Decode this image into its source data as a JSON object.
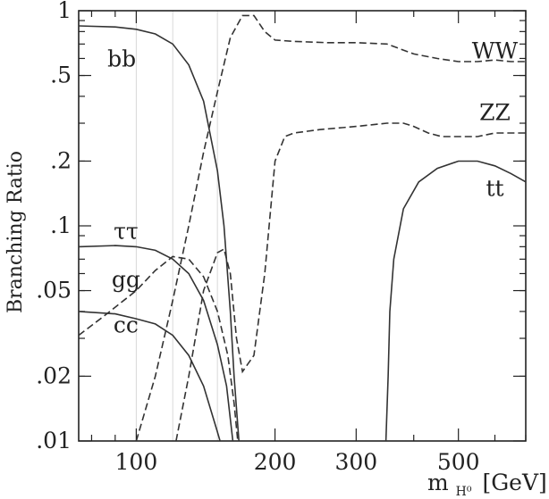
{
  "chart_data": {
    "type": "line",
    "title": "",
    "xlabel_main": "m",
    "xlabel_sub": "H⁰",
    "xlabel_unit": "[GeV]",
    "ylabel": "Branching Ratio",
    "x_scale": "log",
    "y_scale": "log",
    "xlim": [
      75,
      700
    ],
    "ylim": [
      0.01,
      1
    ],
    "xticks": [
      {
        "value": 100,
        "label": "100"
      },
      {
        "value": 200,
        "label": "200"
      },
      {
        "value": 300,
        "label": "300"
      },
      {
        "value": 500,
        "label": "500"
      }
    ],
    "yticks": [
      {
        "value": 1,
        "label": "1"
      },
      {
        "value": 0.5,
        "label": ".5"
      },
      {
        "value": 0.2,
        "label": ".2"
      },
      {
        "value": 0.1,
        "label": ".1"
      },
      {
        "value": 0.05,
        "label": ".05"
      },
      {
        "value": 0.02,
        "label": ".02"
      },
      {
        "value": 0.01,
        "label": ".01"
      }
    ],
    "grid": false,
    "series": [
      {
        "name": "bb",
        "style": "solid",
        "label_at": [
          93,
          0.55
        ],
        "points": [
          [
            75,
            0.85
          ],
          [
            90,
            0.84
          ],
          [
            100,
            0.82
          ],
          [
            110,
            0.78
          ],
          [
            120,
            0.7
          ],
          [
            130,
            0.56
          ],
          [
            140,
            0.38
          ],
          [
            150,
            0.18
          ],
          [
            155,
            0.1
          ],
          [
            160,
            0.04
          ],
          [
            163,
            0.02
          ],
          [
            167,
            0.01
          ]
        ]
      },
      {
        "name": "ττ",
        "style": "solid",
        "label_at": [
          95,
          0.087
        ],
        "points": [
          [
            75,
            0.08
          ],
          [
            90,
            0.081
          ],
          [
            100,
            0.08
          ],
          [
            110,
            0.077
          ],
          [
            120,
            0.07
          ],
          [
            130,
            0.06
          ],
          [
            140,
            0.045
          ],
          [
            150,
            0.028
          ],
          [
            157,
            0.018
          ],
          [
            162,
            0.01
          ]
        ]
      },
      {
        "name": "cc",
        "style": "solid",
        "label_at": [
          95,
          0.032
        ],
        "points": [
          [
            75,
            0.04
          ],
          [
            90,
            0.039
          ],
          [
            100,
            0.037
          ],
          [
            110,
            0.035
          ],
          [
            120,
            0.031
          ],
          [
            130,
            0.025
          ],
          [
            140,
            0.018
          ],
          [
            150,
            0.011
          ],
          [
            152,
            0.01
          ]
        ]
      },
      {
        "name": "gg",
        "style": "dashed",
        "label_at": [
          95,
          0.052
        ],
        "points": [
          [
            75,
            0.031
          ],
          [
            85,
            0.038
          ],
          [
            100,
            0.05
          ],
          [
            110,
            0.062
          ],
          [
            120,
            0.072
          ],
          [
            130,
            0.07
          ],
          [
            140,
            0.058
          ],
          [
            150,
            0.04
          ],
          [
            158,
            0.025
          ],
          [
            163,
            0.015
          ],
          [
            166,
            0.01
          ]
        ]
      },
      {
        "name": "WW",
        "style": "dashed",
        "label_at": [
          600,
          0.6
        ],
        "points": [
          [
            100,
            0.01
          ],
          [
            110,
            0.02
          ],
          [
            120,
            0.045
          ],
          [
            130,
            0.1
          ],
          [
            140,
            0.22
          ],
          [
            150,
            0.42
          ],
          [
            160,
            0.75
          ],
          [
            170,
            0.95
          ],
          [
            180,
            0.95
          ],
          [
            190,
            0.8
          ],
          [
            200,
            0.73
          ],
          [
            220,
            0.72
          ],
          [
            260,
            0.71
          ],
          [
            300,
            0.71
          ],
          [
            350,
            0.7
          ],
          [
            400,
            0.63
          ],
          [
            450,
            0.6
          ],
          [
            500,
            0.58
          ],
          [
            550,
            0.58
          ],
          [
            600,
            0.59
          ],
          [
            650,
            0.58
          ],
          [
            700,
            0.58
          ]
        ]
      },
      {
        "name": "ZZ",
        "style": "dashed",
        "label_at": [
          600,
          0.31
        ],
        "points": [
          [
            122,
            0.01
          ],
          [
            130,
            0.02
          ],
          [
            140,
            0.05
          ],
          [
            150,
            0.075
          ],
          [
            155,
            0.078
          ],
          [
            160,
            0.06
          ],
          [
            165,
            0.03
          ],
          [
            170,
            0.021
          ],
          [
            180,
            0.025
          ],
          [
            190,
            0.06
          ],
          [
            200,
            0.2
          ],
          [
            210,
            0.26
          ],
          [
            220,
            0.27
          ],
          [
            250,
            0.28
          ],
          [
            300,
            0.29
          ],
          [
            350,
            0.3
          ],
          [
            380,
            0.3
          ],
          [
            400,
            0.29
          ],
          [
            430,
            0.27
          ],
          [
            460,
            0.26
          ],
          [
            500,
            0.26
          ],
          [
            550,
            0.26
          ],
          [
            600,
            0.27
          ],
          [
            650,
            0.27
          ],
          [
            700,
            0.27
          ]
        ]
      },
      {
        "name": "tt",
        "style": "solid",
        "label_at": [
          600,
          0.138
        ],
        "points": [
          [
            348,
            0.01
          ],
          [
            352,
            0.02
          ],
          [
            355,
            0.04
          ],
          [
            362,
            0.07
          ],
          [
            380,
            0.12
          ],
          [
            410,
            0.16
          ],
          [
            450,
            0.185
          ],
          [
            500,
            0.2
          ],
          [
            550,
            0.2
          ],
          [
            600,
            0.19
          ],
          [
            650,
            0.175
          ],
          [
            700,
            0.16
          ]
        ]
      }
    ]
  }
}
